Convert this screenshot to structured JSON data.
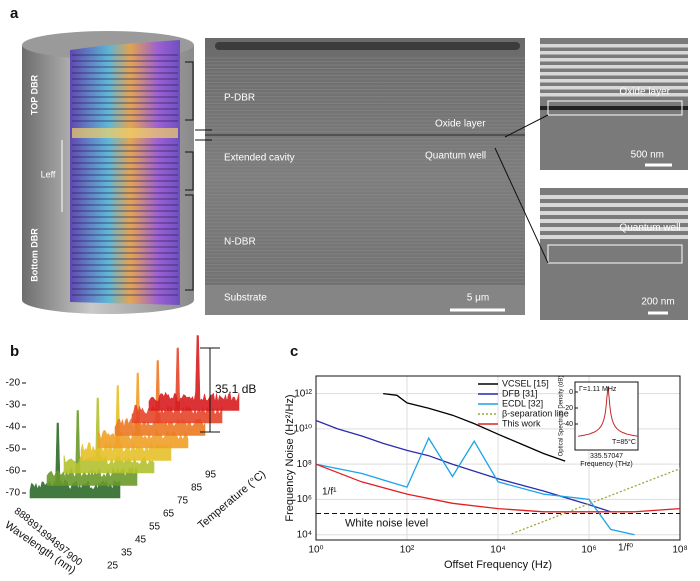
{
  "panel_a": {
    "label": "a",
    "cylinder": {
      "top_dbr": "TOP DBR",
      "l_eff": "Leff",
      "bottom_dbr": "Bottom DBR"
    },
    "sem": {
      "p_dbr": "P-DBR",
      "oxide": "Oxide layer",
      "extended": "Extended cavity",
      "qw": "Quantum well",
      "n_dbr": "N-DBR",
      "substrate": "Substrate",
      "scale": "5 μm"
    },
    "inset_top": {
      "label": "Oxide layer",
      "scale": "500 nm"
    },
    "inset_bottom": {
      "label": "Quantum well",
      "scale": "200 nm"
    }
  },
  "panel_b": {
    "label": "b",
    "yticks": [
      -20,
      -30,
      -40,
      -50,
      -60,
      -70
    ],
    "wavelength_ticks": [
      888,
      891,
      894,
      897,
      900
    ],
    "wavelength_label": "Wavelength (nm)",
    "temperature_ticks": [
      25,
      35,
      45,
      55,
      65,
      75,
      85,
      95
    ],
    "temperature_label": "Temperature (°C)",
    "annotation": "35.1 dB"
  },
  "chart_data": {
    "type": "line",
    "panel": "c",
    "xlabel": "Offset Frequency (Hz)",
    "ylabel": "Frequency Noise (Hz²/Hz)",
    "log_x": true,
    "log_y": true,
    "xlim": [
      1,
      100000000
    ],
    "ylim": [
      5000,
      10000000000000
    ],
    "xticks": [
      {
        "value": 1,
        "label": "10⁰"
      },
      {
        "value": 100,
        "label": "10²"
      },
      {
        "value": 10000,
        "label": "10⁴"
      },
      {
        "value": 1000000,
        "label": "10⁶"
      },
      {
        "value": 100000000,
        "label": "10⁸"
      }
    ],
    "yticks": [
      {
        "value": 10000,
        "label": "10⁴"
      },
      {
        "value": 1000000,
        "label": "10⁶"
      },
      {
        "value": 100000000,
        "label": "10⁸"
      },
      {
        "value": 10000000000,
        "label": "10¹⁰"
      },
      {
        "value": 1000000000000,
        "label": "10¹²"
      }
    ],
    "grid": true,
    "series": [
      {
        "name": "VCSEL [15]",
        "color": "#000000",
        "x": [
          30,
          60,
          100,
          300,
          1000,
          3000,
          10000,
          30000,
          100000,
          300000
        ],
        "values": [
          1000000000000,
          800000000000,
          300000000000,
          150000000000,
          60000000000,
          20000000000,
          5000000000,
          1500000000,
          400000000,
          150000000
        ]
      },
      {
        "name": "DFB  [31]",
        "color": "#2b2bb0",
        "x": [
          1,
          3,
          10,
          30,
          100,
          300,
          1000,
          10000,
          100000,
          1000000,
          3000000
        ],
        "values": [
          30000000000,
          10000000000,
          4000000000,
          1500000000,
          600000000,
          300000000,
          100000000,
          15000000,
          3000000,
          500000,
          200000
        ]
      },
      {
        "name": "ECDL [32]",
        "color": "#1aa3e8",
        "x": [
          1,
          10,
          100,
          300,
          1000,
          3000,
          10000,
          100000,
          1000000,
          3000000,
          10000000
        ],
        "values": [
          100000000,
          30000000,
          5000000,
          3000000000,
          20000000,
          2000000000,
          10000000,
          2000000,
          1000000,
          20000,
          10000
        ]
      },
      {
        "name": "β-separation line",
        "color": "#9aa83a",
        "dashed": true,
        "x": [
          20000,
          100000000
        ],
        "values": [
          11240,
          56200000
        ]
      },
      {
        "name": "This work",
        "color": "#e02020",
        "x": [
          1,
          10,
          100,
          1000,
          10000,
          100000,
          1000000,
          10000000,
          100000000
        ],
        "values": [
          100000000,
          10000000,
          2000000,
          600000,
          300000,
          200000,
          200000,
          200000,
          300000
        ]
      }
    ],
    "white_noise": {
      "label": "White noise level",
      "value": 160000
    },
    "annotations": {
      "one_over_f1": "1/f¹",
      "one_over_f0": "1/f⁰"
    },
    "inset": {
      "linewidth": "Γ=1.11 MHz",
      "center": "335.57047",
      "xlabel": "Frequency (THz)",
      "ylabel": "Optical Spectrum Density (dB)",
      "yticks": [
        0,
        -20,
        -40
      ],
      "temperature": "T=85°C"
    }
  }
}
